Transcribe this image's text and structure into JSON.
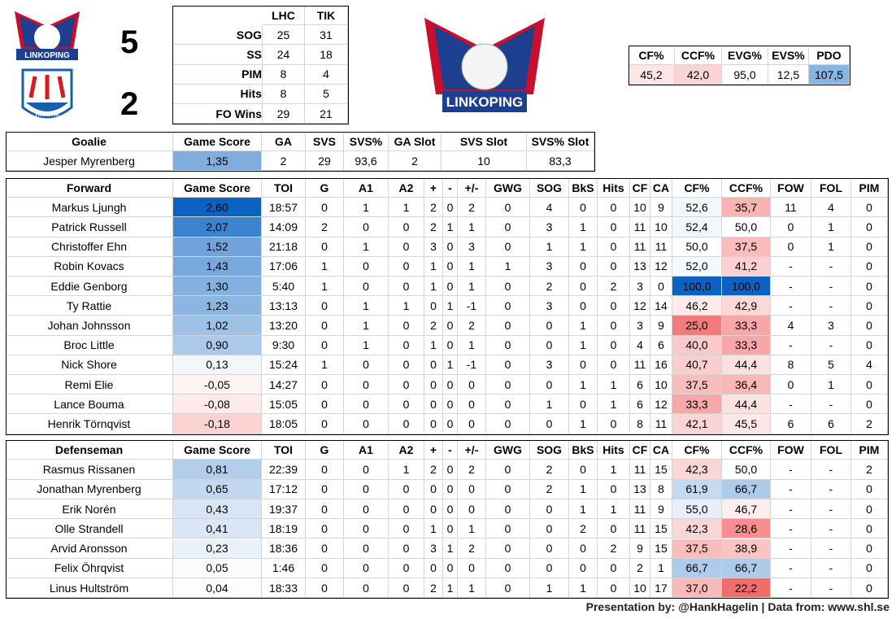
{
  "logos": {
    "home": "LINKOPING",
    "away": "TIMRÅ IK",
    "main": "LINKOPING"
  },
  "score": {
    "home": "5",
    "away": "2"
  },
  "team_stats": {
    "header": [
      "LHC",
      "TIK"
    ],
    "rows": [
      [
        "SOG",
        "25",
        "31"
      ],
      [
        "SS",
        "24",
        "18"
      ],
      [
        "PIM",
        "8",
        "4"
      ],
      [
        "Hits",
        "8",
        "5"
      ],
      [
        "FO Wins",
        "29",
        "21"
      ]
    ]
  },
  "summary": {
    "header": [
      "CF%",
      "CCF%",
      "EVG%",
      "EVS%",
      "PDO"
    ],
    "rows": [
      [
        "45,2",
        "42,0",
        "95,0",
        "12,5",
        "107,5"
      ]
    ]
  },
  "goalie": {
    "header": [
      "Goalie",
      "Game Score",
      "GA",
      "SVS",
      "SVS%",
      "GA Slot",
      "SVS Slot",
      "SVS% Slot"
    ],
    "rows": [
      [
        "Jesper Myrenberg",
        "1,35",
        "2",
        "29",
        "93,6",
        "2",
        "10",
        "83,3"
      ]
    ]
  },
  "forwards": {
    "header": [
      "Forward",
      "Game Score",
      "TOI",
      "G",
      "A1",
      "A2",
      "+",
      "-",
      "+/-",
      "GWG",
      "SOG",
      "BkS",
      "Hits",
      "CF",
      "CA",
      "CF%",
      "CCF%",
      "FOW",
      "FOL",
      "PIM"
    ],
    "rows": [
      [
        "Markus Ljungh",
        "2,60",
        "18:57",
        "0",
        "1",
        "1",
        "2",
        "0",
        "2",
        "0",
        "4",
        "0",
        "0",
        "10",
        "9",
        "52,6",
        "35,7",
        "11",
        "4",
        "0"
      ],
      [
        "Patrick Russell",
        "2,07",
        "14:09",
        "2",
        "0",
        "0",
        "2",
        "1",
        "1",
        "0",
        "3",
        "1",
        "0",
        "11",
        "10",
        "52,4",
        "50,0",
        "0",
        "1",
        "0"
      ],
      [
        "Christoffer Ehn",
        "1,52",
        "21:18",
        "0",
        "1",
        "0",
        "3",
        "0",
        "3",
        "0",
        "1",
        "1",
        "0",
        "11",
        "11",
        "50,0",
        "37,5",
        "0",
        "1",
        "0"
      ],
      [
        "Robin Kovacs",
        "1,43",
        "17:06",
        "1",
        "0",
        "0",
        "1",
        "0",
        "1",
        "1",
        "3",
        "0",
        "0",
        "13",
        "12",
        "52,0",
        "41,2",
        "-",
        "-",
        "0"
      ],
      [
        "Eddie Genborg",
        "1,30",
        "5:40",
        "1",
        "0",
        "0",
        "1",
        "0",
        "1",
        "0",
        "2",
        "0",
        "2",
        "3",
        "0",
        "100,0",
        "100,0",
        "-",
        "-",
        "0"
      ],
      [
        "Ty Rattie",
        "1,23",
        "13:13",
        "0",
        "1",
        "1",
        "0",
        "1",
        "-1",
        "0",
        "3",
        "0",
        "0",
        "12",
        "14",
        "46,2",
        "42,9",
        "-",
        "-",
        "0"
      ],
      [
        "Johan Johnsson",
        "1,02",
        "13:20",
        "0",
        "1",
        "0",
        "2",
        "0",
        "2",
        "0",
        "0",
        "1",
        "0",
        "3",
        "9",
        "25,0",
        "33,3",
        "4",
        "3",
        "0"
      ],
      [
        "Broc Little",
        "0,90",
        "9:30",
        "0",
        "1",
        "0",
        "1",
        "0",
        "1",
        "0",
        "0",
        "1",
        "0",
        "4",
        "6",
        "40,0",
        "33,3",
        "-",
        "-",
        "0"
      ],
      [
        "Nick Shore",
        "0,13",
        "15:24",
        "1",
        "0",
        "0",
        "0",
        "1",
        "-1",
        "0",
        "3",
        "0",
        "0",
        "11",
        "16",
        "40,7",
        "44,4",
        "8",
        "5",
        "4"
      ],
      [
        "Remi Elie",
        "-0,05",
        "14:27",
        "0",
        "0",
        "0",
        "0",
        "0",
        "0",
        "0",
        "0",
        "1",
        "1",
        "6",
        "10",
        "37,5",
        "36,4",
        "0",
        "1",
        "0"
      ],
      [
        "Lance Bouma",
        "-0,08",
        "15:05",
        "0",
        "0",
        "0",
        "0",
        "0",
        "0",
        "0",
        "1",
        "0",
        "1",
        "6",
        "12",
        "33,3",
        "44,4",
        "-",
        "-",
        "0"
      ],
      [
        "Henrik Törnqvist",
        "-0,18",
        "18:05",
        "0",
        "0",
        "0",
        "0",
        "0",
        "0",
        "0",
        "0",
        "1",
        "0",
        "8",
        "11",
        "42,1",
        "45,5",
        "6",
        "6",
        "2"
      ]
    ]
  },
  "defense": {
    "header": [
      "Defenseman",
      "Game Score",
      "TOI",
      "G",
      "A1",
      "A2",
      "+",
      "-",
      "+/-",
      "GWG",
      "SOG",
      "BkS",
      "Hits",
      "CF",
      "CA",
      "CF%",
      "CCF%",
      "FOW",
      "FOL",
      "PIM"
    ],
    "rows": [
      [
        "Rasmus Rissanen",
        "0,81",
        "22:39",
        "0",
        "0",
        "1",
        "2",
        "0",
        "2",
        "0",
        "2",
        "0",
        "1",
        "11",
        "15",
        "42,3",
        "50,0",
        "-",
        "-",
        "2"
      ],
      [
        "Jonathan Myrenberg",
        "0,65",
        "17:12",
        "0",
        "0",
        "0",
        "0",
        "0",
        "0",
        "0",
        "2",
        "1",
        "0",
        "13",
        "8",
        "61,9",
        "66,7",
        "-",
        "-",
        "0"
      ],
      [
        "Erik Norén",
        "0,43",
        "19:37",
        "0",
        "0",
        "0",
        "0",
        "0",
        "0",
        "0",
        "0",
        "1",
        "1",
        "11",
        "9",
        "55,0",
        "46,7",
        "-",
        "-",
        "0"
      ],
      [
        "Olle Strandell",
        "0,41",
        "18:19",
        "0",
        "0",
        "0",
        "1",
        "0",
        "1",
        "0",
        "0",
        "2",
        "0",
        "11",
        "15",
        "42,3",
        "28,6",
        "-",
        "-",
        "0"
      ],
      [
        "Arvid Aronsson",
        "0,23",
        "18:36",
        "0",
        "0",
        "0",
        "3",
        "1",
        "2",
        "0",
        "0",
        "0",
        "2",
        "9",
        "15",
        "37,5",
        "38,9",
        "-",
        "-",
        "0"
      ],
      [
        "Felix Öhrqvist",
        "0,05",
        "1:46",
        "0",
        "0",
        "0",
        "0",
        "0",
        "0",
        "0",
        "0",
        "0",
        "0",
        "2",
        "1",
        "66,7",
        "66,7",
        "-",
        "-",
        "0"
      ],
      [
        "Linus Hultström",
        "0,04",
        "18:33",
        "0",
        "0",
        "0",
        "2",
        "1",
        "1",
        "0",
        "1",
        "1",
        "0",
        "10",
        "17",
        "37,0",
        "22,2",
        "-",
        "-",
        "0"
      ]
    ]
  },
  "footer": "Presentation by: @HankHagelin | Data from: www.shl.se"
}
